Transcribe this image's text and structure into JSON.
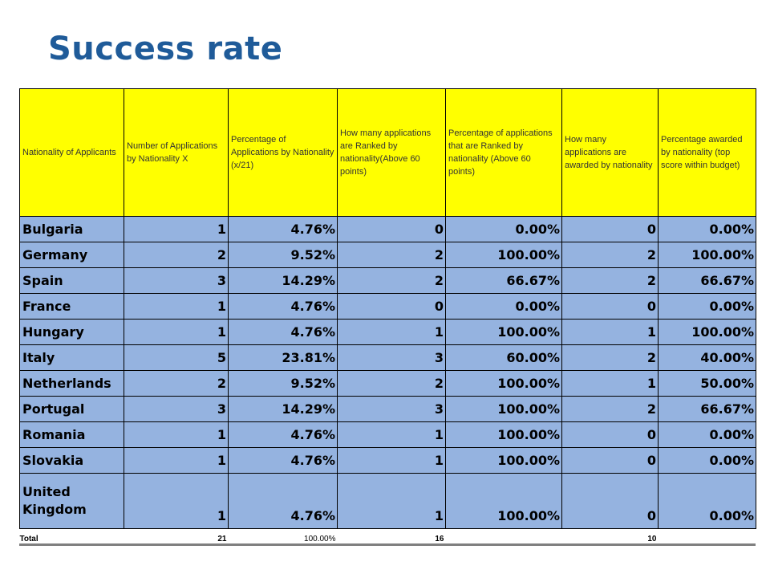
{
  "title": "Success rate",
  "headers": [
    "Nationality of Applicants",
    "Number of Applications by Nationality X",
    "Percentage of Applications by Nationality (x/21)",
    "How many applications are Ranked by nationality(Above 60 points)",
    "Percentage of applications that are Ranked by nationality (Above 60 points)",
    "How many applications are awarded by nationality",
    "Percentage awarded by nationality (top score within budget)"
  ],
  "rows": [
    {
      "country": "Bulgaria",
      "applications": "1",
      "pct_applications": "4.76%",
      "ranked": "0",
      "pct_ranked": "0.00%",
      "awarded": "0",
      "pct_awarded": "0.00%"
    },
    {
      "country": "Germany",
      "applications": "2",
      "pct_applications": "9.52%",
      "ranked": "2",
      "pct_ranked": "100.00%",
      "awarded": "2",
      "pct_awarded": "100.00%"
    },
    {
      "country": "Spain",
      "applications": "3",
      "pct_applications": "14.29%",
      "ranked": "2",
      "pct_ranked": "66.67%",
      "awarded": "2",
      "pct_awarded": "66.67%"
    },
    {
      "country": "France",
      "applications": "1",
      "pct_applications": "4.76%",
      "ranked": "0",
      "pct_ranked": "0.00%",
      "awarded": "0",
      "pct_awarded": "0.00%"
    },
    {
      "country": "Hungary",
      "applications": "1",
      "pct_applications": "4.76%",
      "ranked": "1",
      "pct_ranked": "100.00%",
      "awarded": "1",
      "pct_awarded": "100.00%"
    },
    {
      "country": "Italy",
      "applications": "5",
      "pct_applications": "23.81%",
      "ranked": "3",
      "pct_ranked": "60.00%",
      "awarded": "2",
      "pct_awarded": "40.00%"
    },
    {
      "country": "Netherlands",
      "applications": "2",
      "pct_applications": "9.52%",
      "ranked": "2",
      "pct_ranked": "100.00%",
      "awarded": "1",
      "pct_awarded": "50.00%"
    },
    {
      "country": "Portugal",
      "applications": "3",
      "pct_applications": "14.29%",
      "ranked": "3",
      "pct_ranked": "100.00%",
      "awarded": "2",
      "pct_awarded": "66.67%"
    },
    {
      "country": "Romania",
      "applications": "1",
      "pct_applications": "4.76%",
      "ranked": "1",
      "pct_ranked": "100.00%",
      "awarded": "0",
      "pct_awarded": "0.00%"
    },
    {
      "country": "Slovakia",
      "applications": "1",
      "pct_applications": "4.76%",
      "ranked": "1",
      "pct_ranked": "100.00%",
      "awarded": "0",
      "pct_awarded": "0.00%"
    },
    {
      "country": "United Kingdom",
      "applications": "1",
      "pct_applications": "4.76%",
      "ranked": "1",
      "pct_ranked": "100.00%",
      "awarded": "0",
      "pct_awarded": "0.00%"
    }
  ],
  "total": {
    "label": "Total",
    "applications": "21",
    "pct_applications": "100.00%",
    "ranked": "16",
    "awarded": "10"
  },
  "colors": {
    "title": "#1f5b99",
    "header_bg": "#ffff00",
    "cell_bg": "#95b3e0",
    "highlight_text": "#e00000"
  }
}
